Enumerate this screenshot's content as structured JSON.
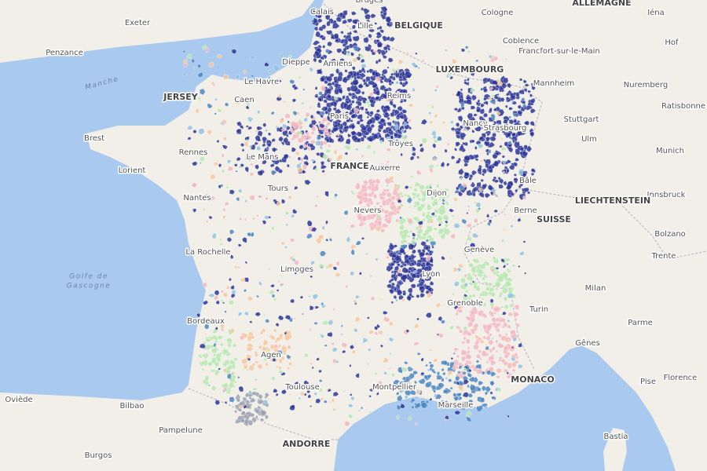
{
  "cities": [
    "Calais",
    "Lille",
    "Bruges",
    "Exeter",
    "Penzance",
    "Cologne",
    "Iéna",
    "Coblence",
    "Francfort-sur-le-Main",
    "Hof",
    "Dieppe",
    "Amiens",
    "Le Havre",
    "Caen",
    "Reims",
    "Mannheim",
    "Nuremberg",
    "Ratisbonne",
    "Paris",
    "Nancy",
    "Strasbourg",
    "Stuttgart",
    "Brest",
    "Troyes",
    "Ulm",
    "Munich",
    "Rennes",
    "Le Mans",
    "Auxerre",
    "Lorient",
    "Tours",
    "Dijon",
    "Bâle",
    "Nantes",
    "Nevers",
    "Berne",
    "Innsbruck",
    "Bolzano",
    "La Rochelle",
    "Genève",
    "Trente",
    "Limoges",
    "Lyon",
    "Milan",
    "Grenoble",
    "Turin",
    "Bordeaux",
    "Parme",
    "Agen",
    "Gênes",
    "Toulouse",
    "Montpellier",
    "Marseille",
    "Florence",
    "Pise",
    "Oviède",
    "Bilbao",
    "Pampelune",
    "Bastia",
    "Burgos"
  ],
  "countries": [
    "ALLEMAGNE",
    "BELGIQUE",
    "LUXEMBOURG",
    "JERSEY",
    "FRANCE",
    "LIECHTENSTEIN",
    "SUISSE",
    "MONACO",
    "ANDORRE"
  ],
  "seas": [
    "Manche",
    "Golfe de",
    "Gascogne"
  ]
}
